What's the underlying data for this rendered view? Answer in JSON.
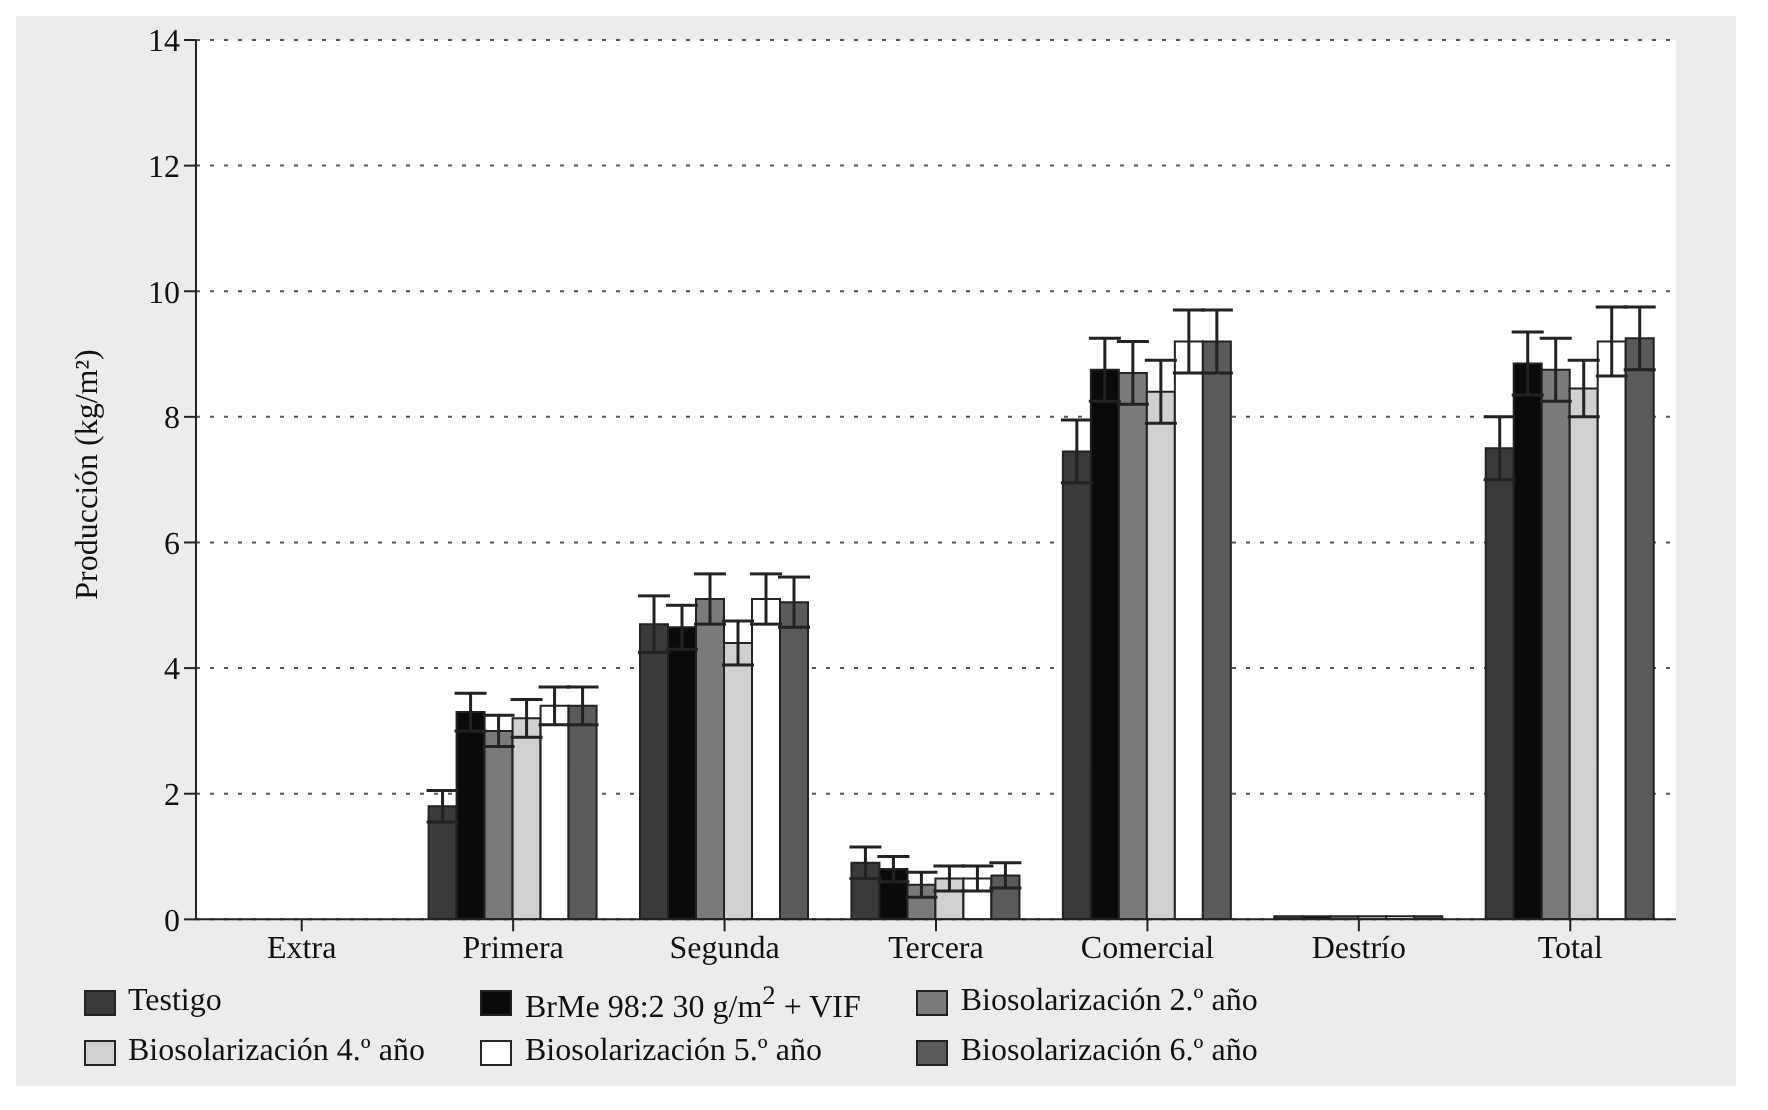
{
  "chart_data": {
    "type": "bar",
    "ylabel": "Producción (kg/m²)",
    "categories": [
      "Extra",
      "Primera",
      "Segunda",
      "Tercera",
      "Comercial",
      "Destrío",
      "Total"
    ],
    "series": [
      {
        "name": "Testigo",
        "color": "#3a3a3a",
        "values": [
          0,
          1.8,
          4.7,
          0.9,
          7.45,
          0.05,
          7.5
        ],
        "errors": [
          null,
          0.25,
          0.45,
          0.25,
          0.5,
          null,
          0.5
        ]
      },
      {
        "name": "BrMe 98:2 30 g/m$^{2}$ + VIF",
        "color": "#0a0a0a",
        "values": [
          0,
          3.3,
          4.65,
          0.8,
          8.75,
          0.05,
          8.85
        ],
        "errors": [
          null,
          0.3,
          0.35,
          0.2,
          0.5,
          null,
          0.5
        ]
      },
      {
        "name": "Biosolarización 2.º año",
        "color": "#7a7a7a",
        "values": [
          0,
          3.0,
          5.1,
          0.55,
          8.7,
          0.05,
          8.75
        ],
        "errors": [
          null,
          0.25,
          0.4,
          0.2,
          0.5,
          null,
          0.5
        ]
      },
      {
        "name": "Biosolarización 4.º año",
        "color": "#d0d0d0",
        "values": [
          0,
          3.2,
          4.4,
          0.65,
          8.4,
          0.05,
          8.45
        ],
        "errors": [
          null,
          0.3,
          0.35,
          0.2,
          0.5,
          null,
          0.45
        ]
      },
      {
        "name": "Biosolarización 5.º año",
        "color": "#ffffff",
        "values": [
          0,
          3.4,
          5.1,
          0.65,
          9.2,
          0.05,
          9.2
        ],
        "errors": [
          null,
          0.3,
          0.4,
          0.2,
          0.5,
          null,
          0.55
        ]
      },
      {
        "name": "Biosolarización 6.º año",
        "color": "#5a5a5a",
        "values": [
          0,
          3.4,
          5.05,
          0.7,
          9.2,
          0.05,
          9.25
        ],
        "errors": [
          null,
          0.3,
          0.4,
          0.2,
          0.5,
          null,
          0.5
        ]
      }
    ],
    "ylim": [
      0,
      14
    ],
    "yticks": [
      0,
      2,
      4,
      6,
      8,
      10,
      12,
      14
    ],
    "grid": "y",
    "legend": "bottom"
  }
}
